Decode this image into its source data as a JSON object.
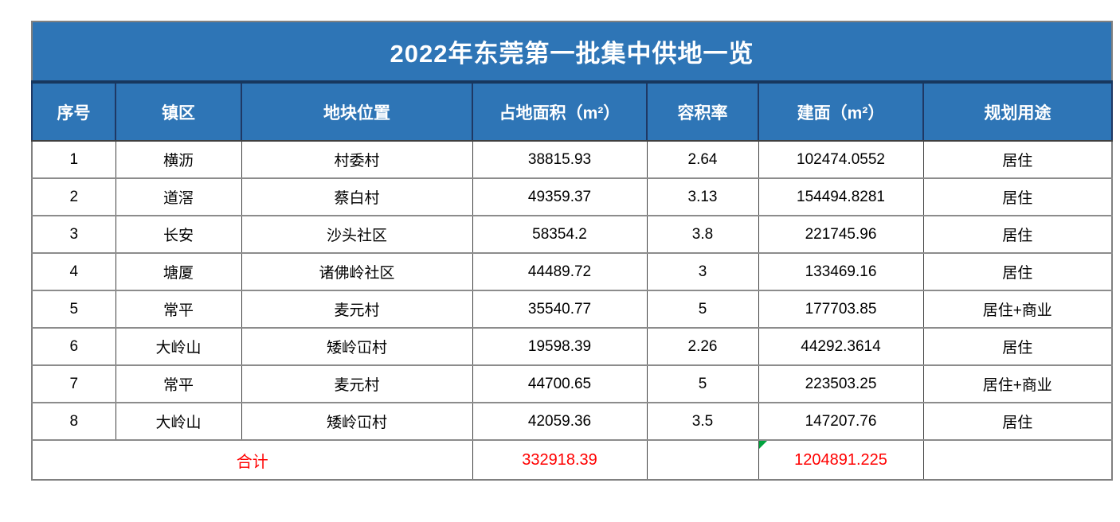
{
  "table": {
    "title": "2022年东莞第一批集中供地一览",
    "columns": [
      "序号",
      "镇区",
      "地块位置",
      "占地面积（m²）",
      "容积率",
      "建面（m²）",
      "规划用途"
    ],
    "rows": [
      {
        "no": "1",
        "town": "横沥",
        "location": "村委村",
        "area": "38815.93",
        "far": "2.64",
        "gfa": "102474.0552",
        "use": "居住"
      },
      {
        "no": "2",
        "town": "道滘",
        "location": "蔡白村",
        "area": "49359.37",
        "far": "3.13",
        "gfa": "154494.8281",
        "use": "居住"
      },
      {
        "no": "3",
        "town": "长安",
        "location": "沙头社区",
        "area": "58354.2",
        "far": "3.8",
        "gfa": "221745.96",
        "use": "居住"
      },
      {
        "no": "4",
        "town": "塘厦",
        "location": "诸佛岭社区",
        "area": "44489.72",
        "far": "3",
        "gfa": "133469.16",
        "use": "居住"
      },
      {
        "no": "5",
        "town": "常平",
        "location": "麦元村",
        "area": "35540.77",
        "far": "5",
        "gfa": "177703.85",
        "use": "居住+商业"
      },
      {
        "no": "6",
        "town": "大岭山",
        "location": "矮岭冚村",
        "area": "19598.39",
        "far": "2.26",
        "gfa": "44292.3614",
        "use": "居住"
      },
      {
        "no": "7",
        "town": "常平",
        "location": "麦元村",
        "area": "44700.65",
        "far": "5",
        "gfa": "223503.25",
        "use": "居住+商业"
      },
      {
        "no": "8",
        "town": "大岭山",
        "location": "矮岭冚村",
        "area": "42059.36",
        "far": "3.5",
        "gfa": "147207.76",
        "use": "居住"
      }
    ],
    "total": {
      "label": "合计",
      "area": "332918.39",
      "far": "",
      "gfa": "1204891.225",
      "use": ""
    }
  },
  "colors": {
    "header_bg": "#2E75B6",
    "title_divider": "#17375E",
    "total_text": "#FF0000",
    "error_indicator_green": "#00A33E"
  }
}
